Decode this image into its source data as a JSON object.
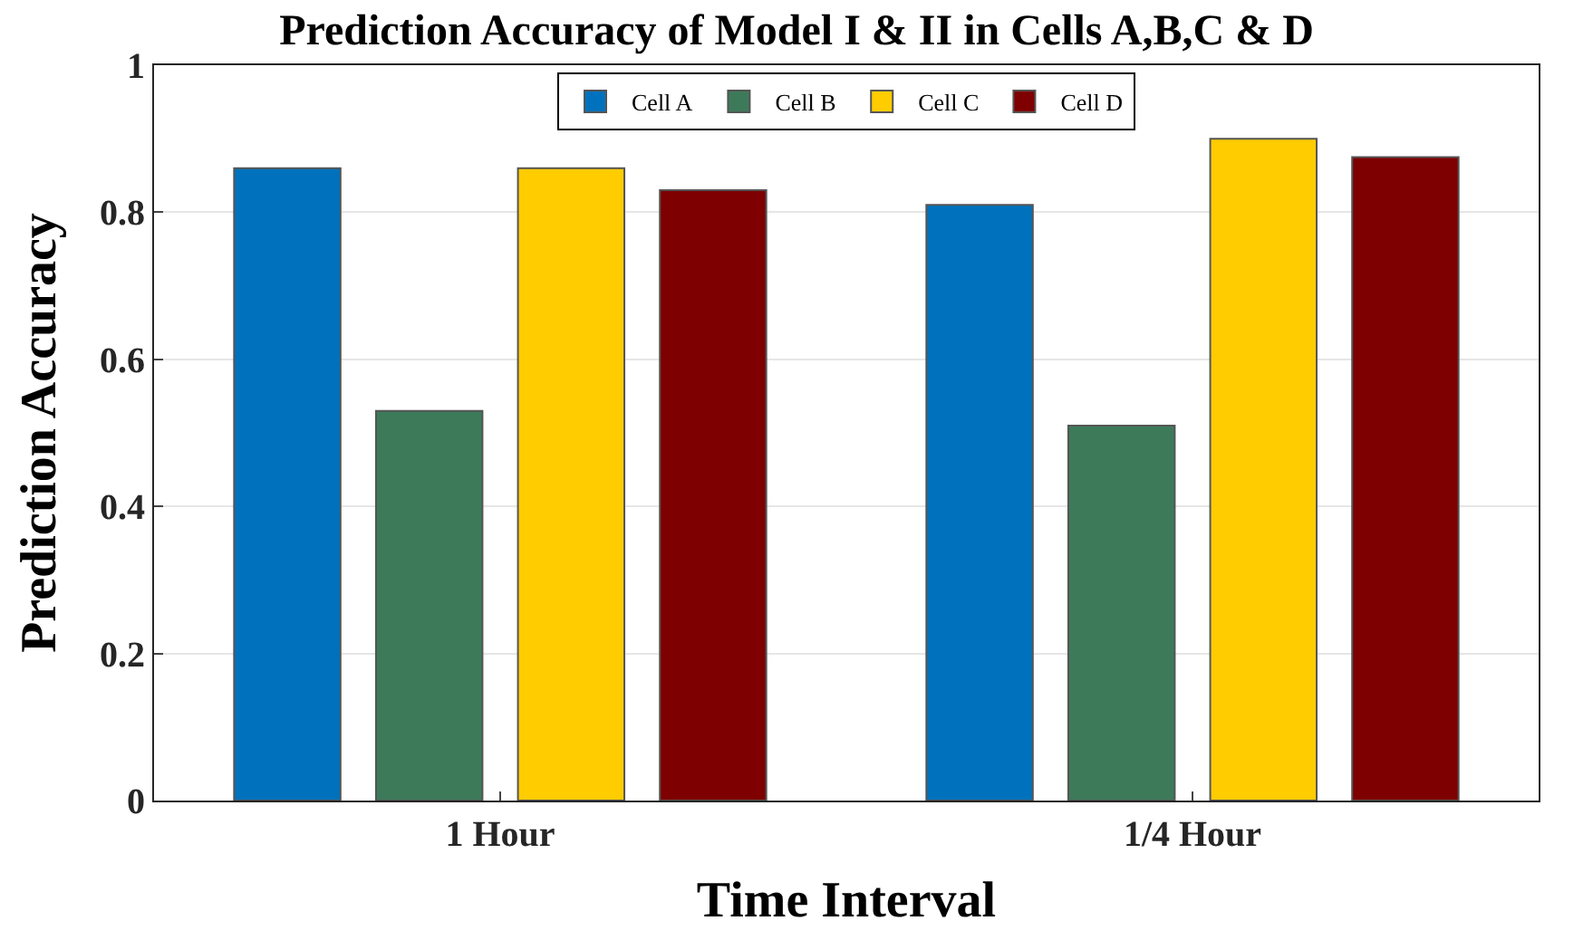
{
  "chart_data": {
    "type": "bar",
    "title": "Prediction Accuracy of Model I & II in Cells A,B,C & D",
    "xlabel": "Time Interval",
    "ylabel": "Prediction Accuracy",
    "categories": [
      "1 Hour",
      "1/4 Hour"
    ],
    "series": [
      {
        "name": "Cell A",
        "color": "#0072bd",
        "values": [
          0.86,
          0.81
        ]
      },
      {
        "name": "Cell B",
        "color": "#3d7a5a",
        "values": [
          0.53,
          0.51
        ]
      },
      {
        "name": "Cell C",
        "color": "#ffcc00",
        "values": [
          0.86,
          0.9
        ]
      },
      {
        "name": "Cell D",
        "color": "#7e0000",
        "values": [
          0.83,
          0.875
        ]
      }
    ],
    "ylim": [
      0,
      1
    ],
    "yticks": [
      0,
      0.2,
      0.4,
      0.6,
      0.8,
      1
    ],
    "grid": "y",
    "legend": "top"
  }
}
